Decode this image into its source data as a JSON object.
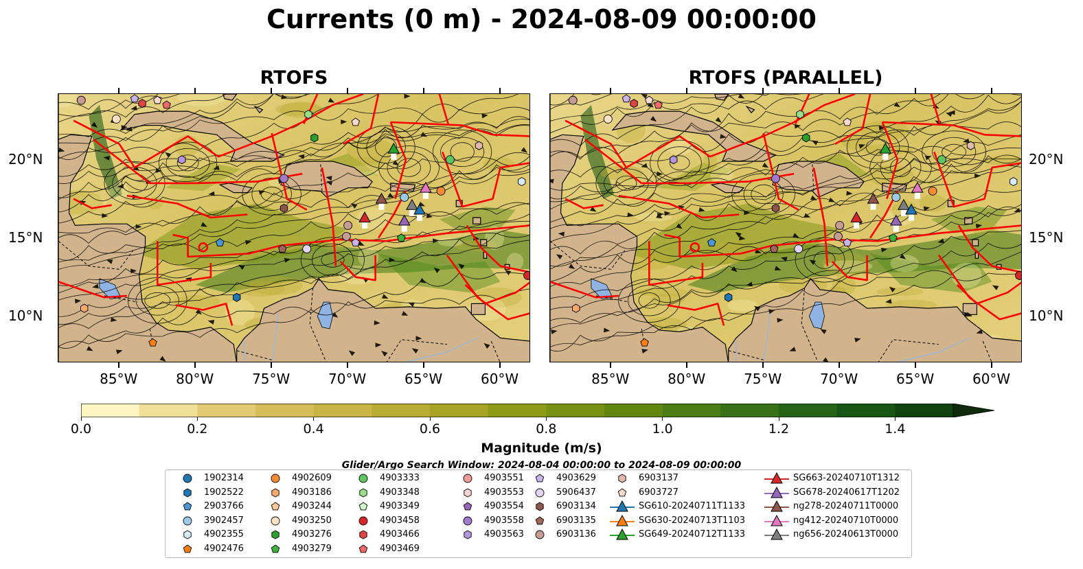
{
  "title": "Currents (0 m) - 2024-08-09 00:00:00",
  "panels": [
    {
      "id": "rtofs",
      "title": "RTOFS"
    },
    {
      "id": "rtofs-parallel",
      "title": "RTOFS (PARALLEL)"
    }
  ],
  "map_extent": {
    "lon_min": -89,
    "lon_max": -58,
    "lat_min": 7,
    "lat_max": 24.2
  },
  "lat_ticks": [
    {
      "value": 20,
      "label": "20°N"
    },
    {
      "value": 15,
      "label": "15°N"
    },
    {
      "value": 10,
      "label": "10°N"
    }
  ],
  "lon_ticks": [
    {
      "value": -85,
      "label": "85°W"
    },
    {
      "value": -80,
      "label": "80°W"
    },
    {
      "value": -75,
      "label": "75°W"
    },
    {
      "value": -70,
      "label": "70°W"
    },
    {
      "value": -65,
      "label": "65°W"
    },
    {
      "value": -60,
      "label": "60°W"
    }
  ],
  "colorbar": {
    "label": "Magnitude (m/s)",
    "min": 0.0,
    "max": 1.5,
    "extend": "max",
    "ticks": [
      "0.0",
      "0.2",
      "0.4",
      "0.6",
      "0.8",
      "1.0",
      "1.2",
      "1.4"
    ],
    "colors": [
      "#fdf6c3",
      "#f0df98",
      "#e3cb76",
      "#d7bd5a",
      "#c9b546",
      "#b9ac34",
      "#a6a326",
      "#8e9b18",
      "#789112",
      "#62870f",
      "#4c7d14",
      "#387117",
      "#256317",
      "#165514",
      "#114310",
      "#0f340d",
      "#102a0c"
    ]
  },
  "legend": {
    "title": "Glider/Argo Search Window: 2024-08-04 00:00:00 to 2024-08-09 00:00:00",
    "items": [
      {
        "label": "1902314",
        "marker": "circle",
        "color": "#1f77b4"
      },
      {
        "label": "1902522",
        "marker": "hexagon",
        "color": "#1f77b4"
      },
      {
        "label": "2903766",
        "marker": "pentagon",
        "color": "#4a97d4"
      },
      {
        "label": "3902457",
        "marker": "circle",
        "color": "#9ecae9"
      },
      {
        "label": "4902355",
        "marker": "hexagon",
        "color": "#d7ebfa"
      },
      {
        "label": "4902476",
        "marker": "pentagon",
        "color": "#ff7f0e"
      },
      {
        "label": "4902609",
        "marker": "circle",
        "color": "#ff8c32"
      },
      {
        "label": "4903186",
        "marker": "hexagon",
        "color": "#ffaa6b"
      },
      {
        "label": "4903244",
        "marker": "pentagon",
        "color": "#ffc896"
      },
      {
        "label": "4903250",
        "marker": "circle",
        "color": "#ffe2c4"
      },
      {
        "label": "4903276",
        "marker": "hexagon",
        "color": "#2ca02c"
      },
      {
        "label": "4903279",
        "marker": "pentagon",
        "color": "#3cb43c"
      },
      {
        "label": "4903333",
        "marker": "circle",
        "color": "#5fc55f"
      },
      {
        "label": "4903348",
        "marker": "hexagon",
        "color": "#98df8a"
      },
      {
        "label": "4903349",
        "marker": "pentagon",
        "color": "#d2f5cc"
      },
      {
        "label": "4903458",
        "marker": "circle",
        "color": "#d62728"
      },
      {
        "label": "4903466",
        "marker": "hexagon",
        "color": "#e04546"
      },
      {
        "label": "4903469",
        "marker": "pentagon",
        "color": "#f06a6a"
      },
      {
        "label": "4903551",
        "marker": "circle",
        "color": "#f49a9a"
      },
      {
        "label": "4903553",
        "marker": "hexagon",
        "color": "#fcd2d2"
      },
      {
        "label": "4903554",
        "marker": "pentagon",
        "color": "#9467bd"
      },
      {
        "label": "4903558",
        "marker": "circle",
        "color": "#a07acb"
      },
      {
        "label": "4903563",
        "marker": "hexagon",
        "color": "#b396dd"
      },
      {
        "label": "4903629",
        "marker": "pentagon",
        "color": "#c9b3ec"
      },
      {
        "label": "5906437",
        "marker": "circle",
        "color": "#e2d4f7"
      },
      {
        "label": "6903134",
        "marker": "hexagon",
        "color": "#8c564b"
      },
      {
        "label": "6903135",
        "marker": "pentagon",
        "color": "#a0665a"
      },
      {
        "label": "6903136",
        "marker": "circle",
        "color": "#c49c94"
      },
      {
        "label": "6903137",
        "marker": "hexagon",
        "color": "#e0b8ae"
      },
      {
        "label": "6903727",
        "marker": "pentagon",
        "color": "#fad9cf"
      },
      {
        "label": "SG610-20240711T1133",
        "marker": "triangle",
        "color": "#1f77b4"
      },
      {
        "label": "SG630-20240713T1103",
        "marker": "triangle",
        "color": "#ff7f0e"
      },
      {
        "label": "SG649-20240712T1133",
        "marker": "triangle",
        "color": "#2ca02c"
      },
      {
        "label": "SG663-20240710T1312",
        "marker": "triangle",
        "color": "#d62728"
      },
      {
        "label": "SG678-20240617T1202",
        "marker": "triangle",
        "color": "#9467bd"
      },
      {
        "label": "ng278-20240711T0000",
        "marker": "triangle",
        "color": "#8c564b"
      },
      {
        "label": "ng412-20240710T0000",
        "marker": "triangle",
        "color": "#e377c2"
      },
      {
        "label": "ng656-20240613T0000",
        "marker": "triangle",
        "color": "#7f7f7f"
      }
    ]
  },
  "map_markers": [
    {
      "label": "6903136",
      "lon": -87.5,
      "lat": 23.8
    },
    {
      "label": "4903629",
      "lon": -84.0,
      "lat": 23.9
    },
    {
      "label": "4903466",
      "lon": -83.5,
      "lat": 23.6
    },
    {
      "label": "6903727",
      "lon": -82.5,
      "lat": 23.8
    },
    {
      "label": "4903469",
      "lon": -81.9,
      "lat": 23.5
    },
    {
      "label": "4903250",
      "lon": -85.2,
      "lat": 22.6
    },
    {
      "label": "4903348",
      "lon": -72.6,
      "lat": 22.9
    },
    {
      "label": "6903727",
      "lon": -69.5,
      "lat": 22.4
    },
    {
      "label": "4903276",
      "lon": -72.2,
      "lat": 21.4
    },
    {
      "label": "4903563",
      "lon": -80.9,
      "lat": 20.0
    },
    {
      "label": "6903137",
      "lon": -61.4,
      "lat": 20.9
    },
    {
      "label": "4903333",
      "lon": -63.3,
      "lat": 20.0
    },
    {
      "label": "4903558",
      "lon": -74.2,
      "lat": 18.8
    },
    {
      "label": "4902355",
      "lon": -58.6,
      "lat": 18.6
    },
    {
      "label": "3902457",
      "lon": -66.3,
      "lat": 17.6
    },
    {
      "label": "4902609",
      "lon": -63.9,
      "lat": 18.0
    },
    {
      "label": "6903134",
      "lon": -74.2,
      "lat": 16.9
    },
    {
      "label": "6903136",
      "lon": -70.0,
      "lat": 15.8
    },
    {
      "label": "6903136",
      "lon": -70.1,
      "lat": 15.1
    },
    {
      "label": "4903629",
      "lon": -69.5,
      "lat": 14.7
    },
    {
      "label": "4903279",
      "lon": -66.5,
      "lat": 15.0
    },
    {
      "label": "2903766",
      "lon": -78.4,
      "lat": 14.7
    },
    {
      "label": "6903135",
      "lon": -74.3,
      "lat": 14.3
    },
    {
      "label": "5906437",
      "lon": -72.7,
      "lat": 14.3
    },
    {
      "label": "1902522",
      "lon": -77.3,
      "lat": 11.2
    },
    {
      "label": "4903458",
      "lon": -58.2,
      "lat": 12.6
    },
    {
      "label": "4903186",
      "lon": -87.3,
      "lat": 10.5
    },
    {
      "label": "4902476",
      "lon": -82.8,
      "lat": 8.3
    },
    {
      "label": "SG649-20240712T1133",
      "lon": -67.0,
      "lat": 20.7
    },
    {
      "label": "SG663-20240710T1312",
      "lon": -68.9,
      "lat": 16.3
    },
    {
      "label": "ng278-20240711T0000",
      "lon": -67.8,
      "lat": 17.5
    },
    {
      "label": "ng412-20240710T0000",
      "lon": -64.9,
      "lat": 18.2
    },
    {
      "label": "ng656-20240613T0000",
      "lon": -65.8,
      "lat": 17.1
    },
    {
      "label": "SG610-20240711T1133",
      "lon": -65.3,
      "lat": 16.8
    },
    {
      "label": "SG678-20240617T1202",
      "lon": -66.3,
      "lat": 16.1
    }
  ]
}
